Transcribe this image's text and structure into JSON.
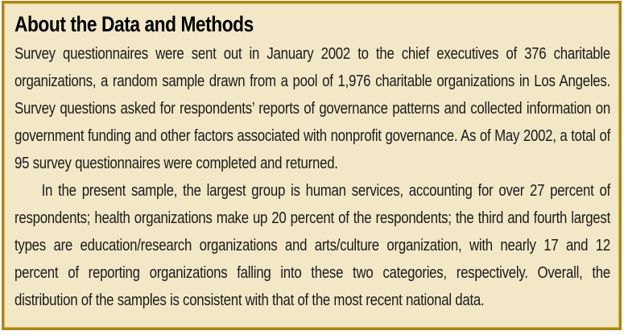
{
  "box": {
    "title": "About the Data and Methods",
    "paragraphs": [
      "Survey questionnaires were sent out in January 2002 to the chief executives of 376 charitable organizations, a random sample drawn from a pool of 1,976 charitable organizations in Los Angeles. Survey questions asked for respondents’ reports of governance patterns and collected information on government funding and other factors associated with nonprofit governance. As of May 2002, a total of 95 survey questionnaires were completed and returned.",
      "In the present sample, the largest group is human services, accounting for over 27 percent of respondents; health organizations make up 20 percent of the respondents; the third and fourth largest types are education/research organizations and arts/culture organization, with nearly 17 and 12 percent of reporting organizations falling into these two categories, respectively. Overall, the distribution of the samples is consistent with that of the most recent national data."
    ],
    "colors": {
      "background": "#f2e7c6",
      "border": "#a8861c",
      "border_inner": "#d9b93d",
      "text": "#1b1b1b",
      "title": "#000000",
      "page_background": "#ffffff"
    }
  }
}
